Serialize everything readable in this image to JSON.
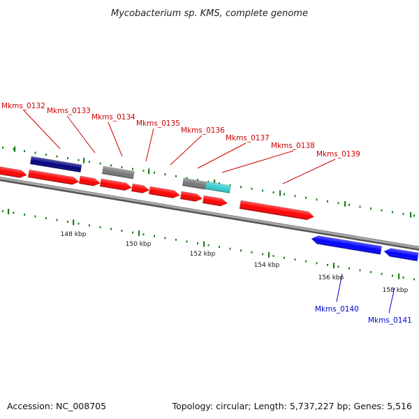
{
  "title": "Mycobacterium sp. KMS, complete genome",
  "footer": {
    "accession": "Accession: NC_008705",
    "summary": "Topology: circular; Length: 5,737,227 bp; Genes: 5,516"
  },
  "colors": {
    "forward_cds": "#ff0000",
    "forward_alt": "#000080",
    "reverse_cds": "#0000ff",
    "rna_cyan": "#33cccc",
    "pseudo_grey": "#777777",
    "backbone": "#888888",
    "tick": "#1f7f1f",
    "forward_label": "#cc0000",
    "reverse_label": "#0000cc"
  },
  "scale": {
    "tick_labels": [
      "148 kbp",
      "150 kbp",
      "152 kbp",
      "154 kbp",
      "156 kbp",
      "158 kbp"
    ]
  },
  "genes": [
    {
      "label": "Mkms_0132",
      "strand": "forward",
      "color": "forward_alt"
    },
    {
      "label": "Mkms_0133",
      "strand": "forward",
      "color": "forward_cds"
    },
    {
      "label": "Mkms_0134",
      "strand": "forward",
      "color": "pseudo_grey"
    },
    {
      "label": "Mkms_0135",
      "strand": "forward",
      "color": "forward_cds"
    },
    {
      "label": "Mkms_0136",
      "strand": "forward",
      "color": "forward_cds"
    },
    {
      "label": "Mkms_0137",
      "strand": "forward",
      "color": "pseudo_grey"
    },
    {
      "label": "Mkms_0138",
      "strand": "forward",
      "color": "rna_cyan"
    },
    {
      "label": "Mkms_0139",
      "strand": "forward",
      "color": "forward_cds"
    },
    {
      "label": "Mkms_0140",
      "strand": "reverse",
      "color": "reverse_cds"
    },
    {
      "label": "Mkms_0141",
      "strand": "reverse",
      "color": "reverse_cds"
    }
  ]
}
